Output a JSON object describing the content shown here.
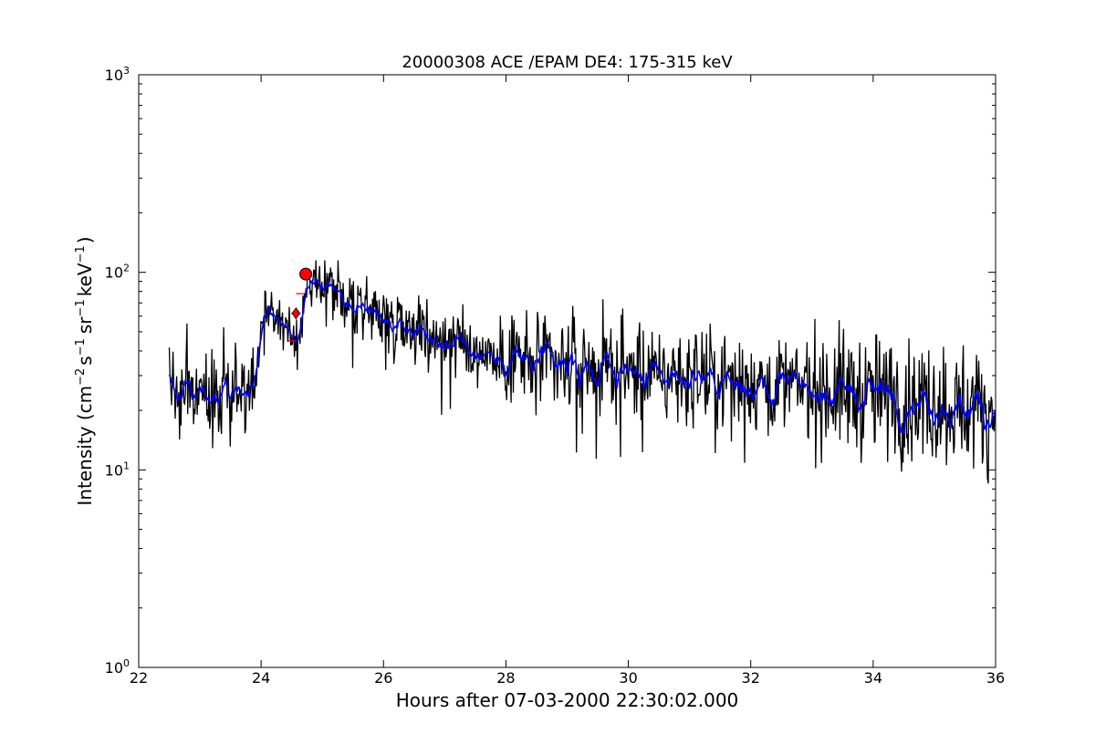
{
  "chart_data": {
    "type": "line",
    "title": "20000308 ACE /EPAM DE4: 175-315 keV",
    "xlabel": "Hours after 07-03-2000 22:30:02.000",
    "ylabel": {
      "base": "Intensity (cm",
      "sup1": "−2",
      "part2": "s",
      "sup2": "−1",
      "part3": "sr",
      "sup3": "−1",
      "part4": "keV",
      "sup4": "−1",
      "end": ")"
    },
    "x_range": [
      22,
      36
    ],
    "y_range": [
      1,
      1000
    ],
    "y_scale": "log",
    "x_ticks": [
      22,
      24,
      26,
      28,
      30,
      32,
      34,
      36
    ],
    "x_tick_labels": [
      "22",
      "24",
      "26",
      "28",
      "30",
      "32",
      "34",
      "36"
    ],
    "y_ticks": [
      1,
      10,
      100,
      1000
    ],
    "y_tick_labels": [
      {
        "base": "10",
        "exp": "0"
      },
      {
        "base": "10",
        "exp": "1"
      },
      {
        "base": "10",
        "exp": "2"
      },
      {
        "base": "10",
        "exp": "3"
      }
    ],
    "grid": false,
    "series": [
      {
        "kind": "raw",
        "color": "#000000",
        "segments": [
          {
            "x0": 22.5,
            "x1": 23.9,
            "y0": 25,
            "y1": 25,
            "noise": 0.55
          },
          {
            "x0": 23.9,
            "x1": 24.05,
            "y0": 25,
            "y1": 68,
            "noise": 0.2
          },
          {
            "x0": 24.05,
            "x1": 24.4,
            "y0": 68,
            "y1": 52,
            "noise": 0.25
          },
          {
            "x0": 24.4,
            "x1": 24.6,
            "y0": 52,
            "y1": 42,
            "noise": 0.3
          },
          {
            "x0": 24.6,
            "x1": 24.8,
            "y0": 45,
            "y1": 88,
            "noise": 0.25
          },
          {
            "x0": 24.8,
            "x1": 28.0,
            "y0": 85,
            "y1": 36,
            "noise": 0.35
          },
          {
            "x0": 28.0,
            "x1": 33.0,
            "y0": 36,
            "y1": 26,
            "noise": 0.5
          },
          {
            "x0": 33.0,
            "x1": 36.0,
            "y0": 26,
            "y1": 20,
            "noise": 0.65
          }
        ]
      },
      {
        "kind": "smoothed",
        "color": "#0000ff",
        "smoothing_window": 5
      }
    ],
    "markers": [
      {
        "shape": "diamond",
        "x": 24.57,
        "y": 62,
        "color": "#ff0000"
      },
      {
        "shape": "circle",
        "x": 24.73,
        "y": 98,
        "color": "#ff0000"
      }
    ],
    "error_bars": [
      {
        "x": 24.57,
        "y": 62,
        "dx": 0.08,
        "color": "#ff0000"
      },
      {
        "x": 24.64,
        "y": 78,
        "dx": 0.07,
        "color": "#ff0000"
      },
      {
        "x": 24.5,
        "y": 45,
        "dx": 0.06,
        "color": "#ff0000"
      }
    ]
  }
}
